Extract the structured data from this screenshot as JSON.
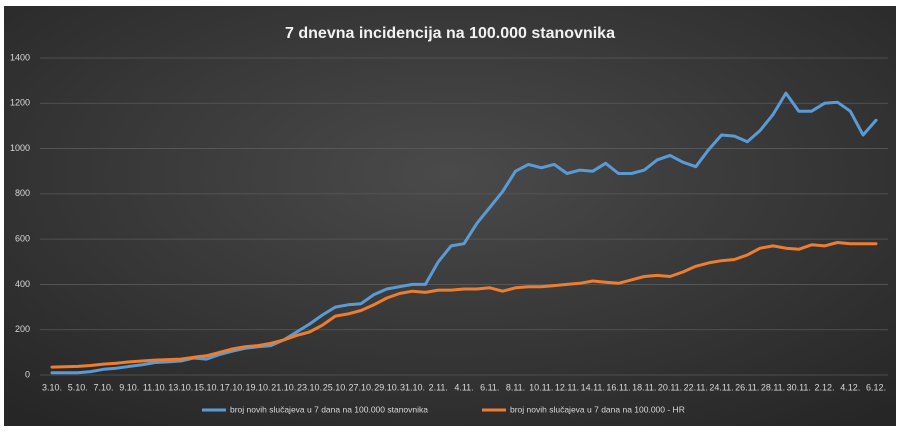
{
  "chart_data": {
    "type": "line",
    "title": "7 dnevna incidencija na 100.000 stanovnika",
    "categories": [
      "3.10.",
      null,
      "5.10.",
      null,
      "7.10.",
      null,
      "9.10.",
      null,
      "11.10.",
      null,
      "13.10.",
      null,
      "15.10.",
      null,
      "17.10.",
      null,
      "19.10.",
      null,
      "21.10.",
      null,
      "23.10.",
      null,
      "25.10.",
      null,
      "27.10.",
      null,
      "29.10.",
      null,
      "31.10.",
      null,
      "2.11.",
      null,
      "4.11.",
      null,
      "6.11.",
      null,
      "8.11.",
      null,
      "10.11.",
      null,
      "12.11.",
      null,
      "14.11.",
      null,
      "16.11.",
      null,
      "18.11.",
      null,
      "20.11.",
      null,
      "22.11.",
      null,
      "24.11.",
      null,
      "26.11.",
      null,
      "28.11.",
      null,
      "30.11.",
      null,
      "2.12.",
      null,
      "4.12.",
      null,
      "6.12."
    ],
    "series": [
      {
        "name": "broj novih slučajeva u 7 dana na 100.000 stanovnika",
        "color": "#5b9bd5",
        "values": [
          10,
          10,
          10,
          15,
          25,
          30,
          38,
          45,
          55,
          58,
          62,
          75,
          70,
          90,
          105,
          118,
          125,
          130,
          155,
          190,
          225,
          265,
          300,
          310,
          315,
          355,
          380,
          390,
          400,
          400,
          500,
          570,
          580,
          670,
          740,
          810,
          900,
          930,
          915,
          930,
          890,
          905,
          900,
          935,
          890,
          890,
          905,
          950,
          970,
          940,
          920,
          995,
          1060,
          1055,
          1030,
          1080,
          1150,
          1245,
          1165,
          1165,
          1200,
          1205,
          1165,
          1060,
          1125
        ]
      },
      {
        "name": "broj novih slučajeva u 7 dana na 100.000 - HR",
        "color": "#ed7d31",
        "values": [
          35,
          36,
          38,
          42,
          48,
          52,
          58,
          62,
          66,
          68,
          70,
          78,
          85,
          100,
          115,
          125,
          130,
          140,
          155,
          175,
          190,
          220,
          260,
          270,
          285,
          310,
          340,
          360,
          370,
          365,
          375,
          375,
          380,
          380,
          385,
          370,
          385,
          390,
          390,
          395,
          400,
          405,
          415,
          410,
          405,
          420,
          435,
          440,
          435,
          455,
          480,
          495,
          505,
          510,
          530,
          560,
          570,
          560,
          555,
          575,
          570,
          585,
          580,
          580,
          580
        ]
      }
    ],
    "ylim": [
      0,
      1400
    ],
    "yticks": [
      0,
      200,
      400,
      600,
      800,
      1000,
      1200,
      1400
    ],
    "grid": true,
    "legend": "bottom"
  }
}
